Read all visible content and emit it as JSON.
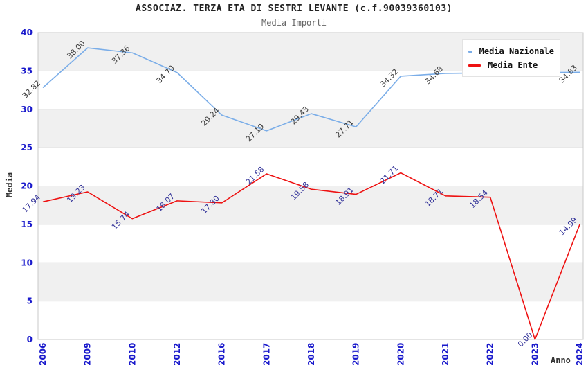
{
  "header": {
    "title": "ASSOCIAZ. TERZA ETA DI SESTRI LEVANTE (c.f.90039360103)",
    "subtitle": "Media Importi"
  },
  "chart_data": {
    "type": "line",
    "title": "ASSOCIAZ. TERZA ETA DI SESTRI LEVANTE (c.f.90039360103)",
    "subtitle": "Media Importi",
    "xlabel": "Anno",
    "ylabel": "Media",
    "ylim": [
      0,
      40
    ],
    "ytick_step": 5,
    "yticks": [
      0,
      5,
      10,
      15,
      20,
      25,
      30,
      35,
      40
    ],
    "grid": true,
    "band_colors": [
      "#ffffff",
      "#f0f0f0"
    ],
    "gridline_color": "#dcdcdc",
    "plot_border_color": "#c8c8c8",
    "axis_tick_color": "#1a1acc",
    "categories": [
      "2006",
      "2009",
      "2010",
      "2012",
      "2016",
      "2017",
      "2018",
      "2019",
      "2020",
      "2021",
      "2022",
      "2023",
      "2024"
    ],
    "legend": {
      "position": "top-right"
    },
    "series": [
      {
        "name": "Media Nazionale",
        "color": "#7aade8",
        "label_color": "#3d3d3d",
        "values": [
          32.82,
          38.0,
          37.36,
          34.79,
          29.24,
          27.19,
          29.43,
          27.71,
          34.32,
          34.68,
          34.75,
          34.8,
          34.83
        ],
        "labels": [
          "32.82",
          "38.00",
          "37.36",
          "34.79",
          "29.24",
          "27.19",
          "29.43",
          "27.71",
          "34.32",
          "34.68",
          null,
          null,
          "34.83"
        ]
      },
      {
        "name": "Media Ente",
        "color": "#ee1111",
        "label_color": "#333399",
        "values": [
          17.94,
          19.23,
          15.74,
          18.07,
          17.8,
          21.58,
          19.58,
          18.91,
          21.71,
          18.71,
          18.54,
          0.0,
          14.99
        ],
        "labels": [
          "17.94",
          "19.23",
          "15.74",
          "18.07",
          "17.80",
          "21.58",
          "19.58",
          "18.91",
          "21.71",
          "18.71",
          "18.54",
          "0.00",
          "14.99"
        ]
      }
    ]
  }
}
